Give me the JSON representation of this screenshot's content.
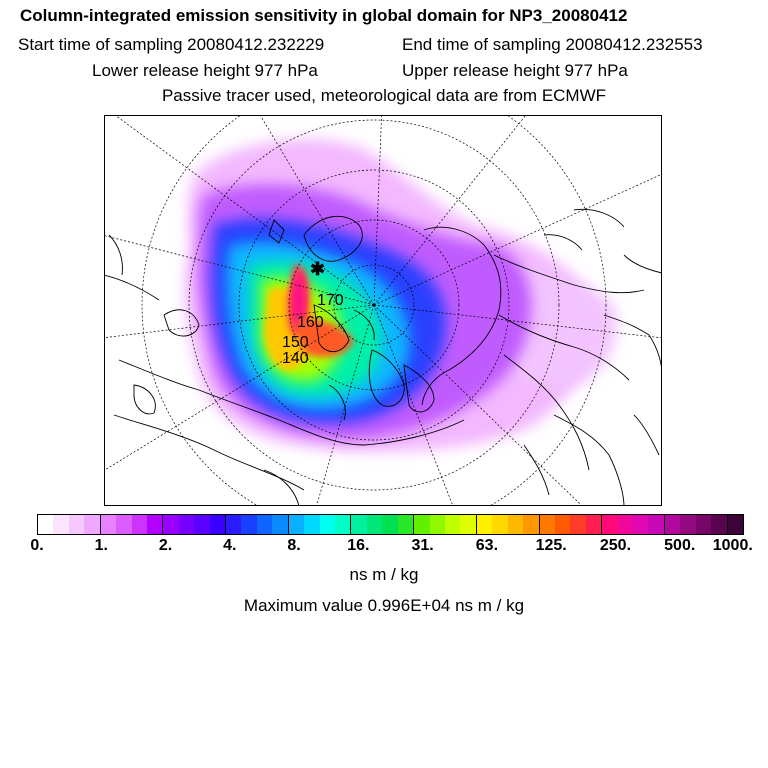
{
  "header": {
    "title": "Column-integrated emission sensitivity in global domain for NP3_20080412",
    "start_time": "Start time of sampling 20080412.232229",
    "end_time": "End time of sampling 20080412.232553",
    "lower_height": "Lower release height  977 hPa",
    "upper_height": "Upper release height  977 hPa",
    "tracer_note": "Passive tracer used, meteorological data are from ECMWF"
  },
  "map": {
    "projection": "polar stereographic (north pole)",
    "trajectory_labels": [
      "170",
      "160",
      "150",
      "140"
    ]
  },
  "colorbar": {
    "colors": [
      "#ffffff",
      "#fce4ff",
      "#f7c8ff",
      "#f0a8ff",
      "#e880ff",
      "#dc5cff",
      "#cc33ff",
      "#b400ff",
      "#9800ff",
      "#7800ff",
      "#5a00ff",
      "#3a00ff",
      "#2a1cff",
      "#1a40ff",
      "#1064ff",
      "#0a8aff",
      "#08b0ff",
      "#00d8ff",
      "#00fff0",
      "#00ffc8",
      "#00f0a0",
      "#00e678",
      "#00e050",
      "#28e628",
      "#60f000",
      "#90f800",
      "#c0ff00",
      "#e0ff00",
      "#fff000",
      "#ffd800",
      "#ffb800",
      "#ff9800",
      "#ff7800",
      "#ff5a00",
      "#ff3c28",
      "#ff1e50",
      "#ff0a78",
      "#f0089a",
      "#e008b4",
      "#c808b4",
      "#b0089c",
      "#940880",
      "#780668",
      "#5a0450",
      "#3c0338"
    ],
    "tick_labels": [
      "0.",
      "1.",
      "2.",
      "4.",
      "8.",
      "16.",
      "31.",
      "63.",
      "125.",
      "250.",
      "500.",
      "1000."
    ]
  },
  "footer": {
    "units": "ns m / kg",
    "max_value": "Maximum value  0.996E+04 ns m / kg"
  }
}
